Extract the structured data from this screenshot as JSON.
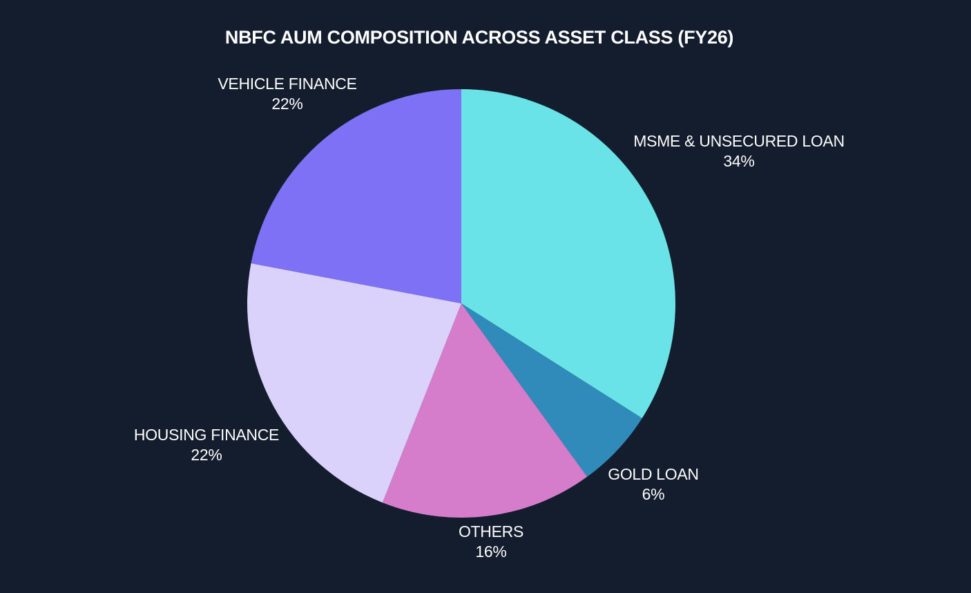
{
  "chart_data": {
    "type": "pie",
    "title": "NBFC AUM COMPOSITION ACROSS ASSET CLASS (FY26)",
    "start_angle_deg": 0,
    "direction": "clockwise",
    "slices": [
      {
        "label": "MSME & UNSECURED LOAN",
        "value": 34,
        "value_label": "34%",
        "color": "#6ae3e7"
      },
      {
        "label": "GOLD LOAN",
        "value": 6,
        "value_label": "6%",
        "color": "#2e8bba"
      },
      {
        "label": "OTHERS",
        "value": 16,
        "value_label": "16%",
        "color": "#d57ccb"
      },
      {
        "label": "HOUSING FINANCE",
        "value": 22,
        "value_label": "22%",
        "color": "#dad2fa"
      },
      {
        "label": "VEHICLE FINANCE",
        "value": 22,
        "value_label": "22%",
        "color": "#7d71f5"
      }
    ]
  }
}
